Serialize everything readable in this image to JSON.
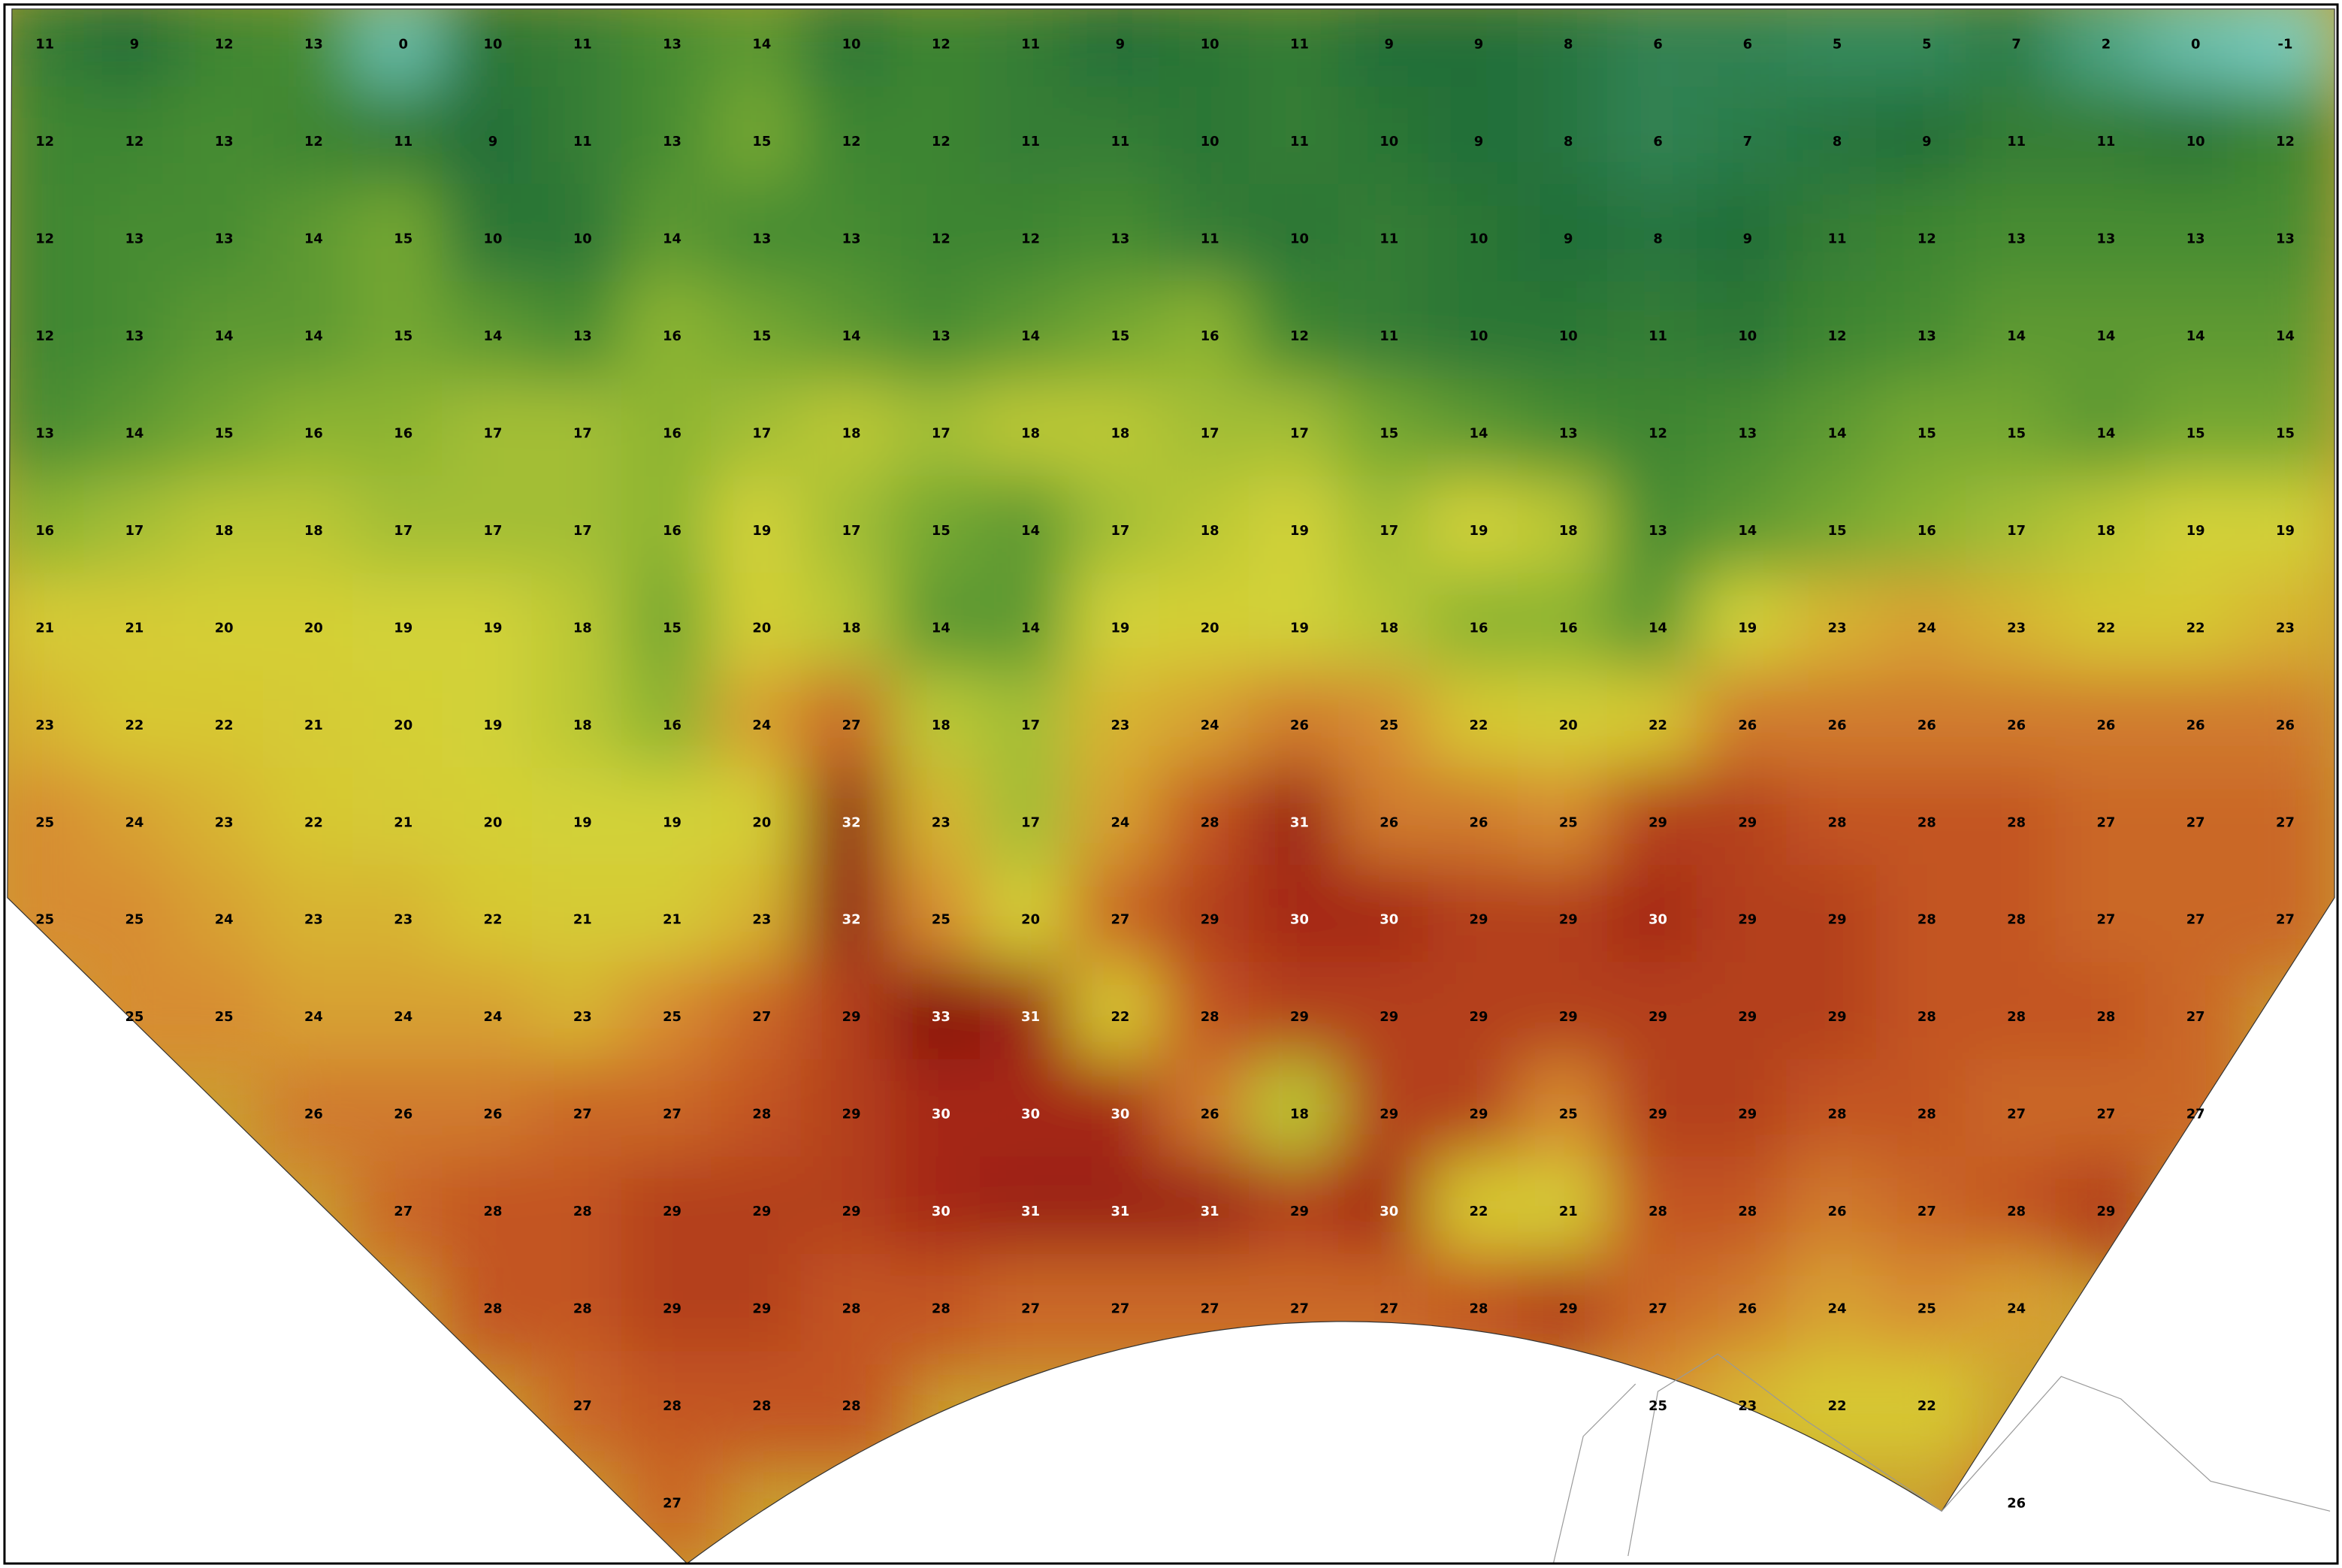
{
  "map": {
    "rows": [
      [
        11,
        9,
        12,
        13,
        0,
        10,
        11,
        13,
        14,
        10,
        12,
        11,
        9,
        10,
        11,
        9,
        9,
        8,
        6,
        6,
        5,
        5,
        7,
        2,
        0,
        -1
      ],
      [
        12,
        12,
        13,
        12,
        11,
        9,
        11,
        13,
        15,
        12,
        12,
        11,
        11,
        10,
        11,
        10,
        9,
        8,
        6,
        7,
        8,
        9,
        11,
        11,
        10,
        12
      ],
      [
        12,
        13,
        13,
        14,
        15,
        10,
        10,
        14,
        13,
        13,
        12,
        12,
        13,
        11,
        10,
        11,
        10,
        9,
        8,
        9,
        11,
        12,
        13,
        13,
        13,
        13
      ],
      [
        12,
        13,
        14,
        14,
        15,
        14,
        13,
        16,
        15,
        14,
        13,
        14,
        15,
        16,
        12,
        11,
        10,
        10,
        11,
        10,
        12,
        13,
        14,
        14,
        14,
        14
      ],
      [
        13,
        14,
        15,
        16,
        16,
        17,
        17,
        16,
        17,
        18,
        17,
        18,
        18,
        17,
        17,
        15,
        14,
        13,
        12,
        13,
        14,
        15,
        15,
        14,
        15,
        15
      ],
      [
        16,
        17,
        18,
        18,
        17,
        17,
        17,
        16,
        19,
        17,
        15,
        14,
        17,
        18,
        19,
        17,
        19,
        18,
        13,
        14,
        15,
        16,
        17,
        18,
        19,
        19
      ],
      [
        21,
        21,
        20,
        20,
        19,
        19,
        18,
        15,
        20,
        18,
        14,
        14,
        19,
        20,
        19,
        18,
        16,
        16,
        14,
        19,
        23,
        24,
        23,
        22,
        22,
        23
      ],
      [
        23,
        22,
        22,
        21,
        20,
        19,
        18,
        16,
        24,
        27,
        18,
        17,
        23,
        24,
        26,
        25,
        22,
        20,
        22,
        26,
        26,
        26,
        26,
        26,
        26,
        26
      ],
      [
        25,
        24,
        23,
        22,
        21,
        20,
        19,
        19,
        20,
        32,
        23,
        17,
        24,
        28,
        31,
        26,
        26,
        25,
        29,
        29,
        28,
        28,
        28,
        27,
        27,
        27
      ],
      [
        25,
        25,
        24,
        23,
        23,
        22,
        21,
        21,
        23,
        32,
        25,
        20,
        27,
        29,
        30,
        30,
        29,
        29,
        30,
        29,
        29,
        28,
        28,
        27,
        27,
        27
      ],
      [
        null,
        25,
        25,
        24,
        24,
        24,
        23,
        25,
        27,
        29,
        33,
        31,
        22,
        28,
        29,
        29,
        29,
        29,
        29,
        29,
        29,
        28,
        28,
        28,
        27,
        null
      ],
      [
        null,
        null,
        null,
        26,
        26,
        26,
        27,
        27,
        28,
        29,
        30,
        30,
        30,
        26,
        18,
        29,
        29,
        25,
        29,
        29,
        28,
        28,
        27,
        27,
        27,
        null
      ],
      [
        null,
        null,
        null,
        null,
        27,
        28,
        28,
        29,
        29,
        29,
        30,
        31,
        31,
        31,
        29,
        30,
        22,
        21,
        28,
        28,
        26,
        27,
        28,
        29,
        null,
        null
      ],
      [
        null,
        null,
        null,
        null,
        null,
        28,
        28,
        29,
        29,
        28,
        28,
        27,
        27,
        27,
        27,
        27,
        28,
        29,
        27,
        26,
        24,
        25,
        24,
        null,
        null,
        null
      ],
      [
        null,
        null,
        null,
        null,
        null,
        null,
        27,
        28,
        28,
        28,
        null,
        null,
        null,
        null,
        null,
        null,
        null,
        null,
        25,
        23,
        22,
        22,
        null,
        null,
        null,
        null
      ],
      [
        null,
        null,
        null,
        null,
        null,
        null,
        null,
        27,
        null,
        null,
        null,
        null,
        null,
        null,
        null,
        null,
        null,
        null,
        null,
        null,
        null,
        null,
        26,
        null,
        null,
        null
      ]
    ]
  }
}
